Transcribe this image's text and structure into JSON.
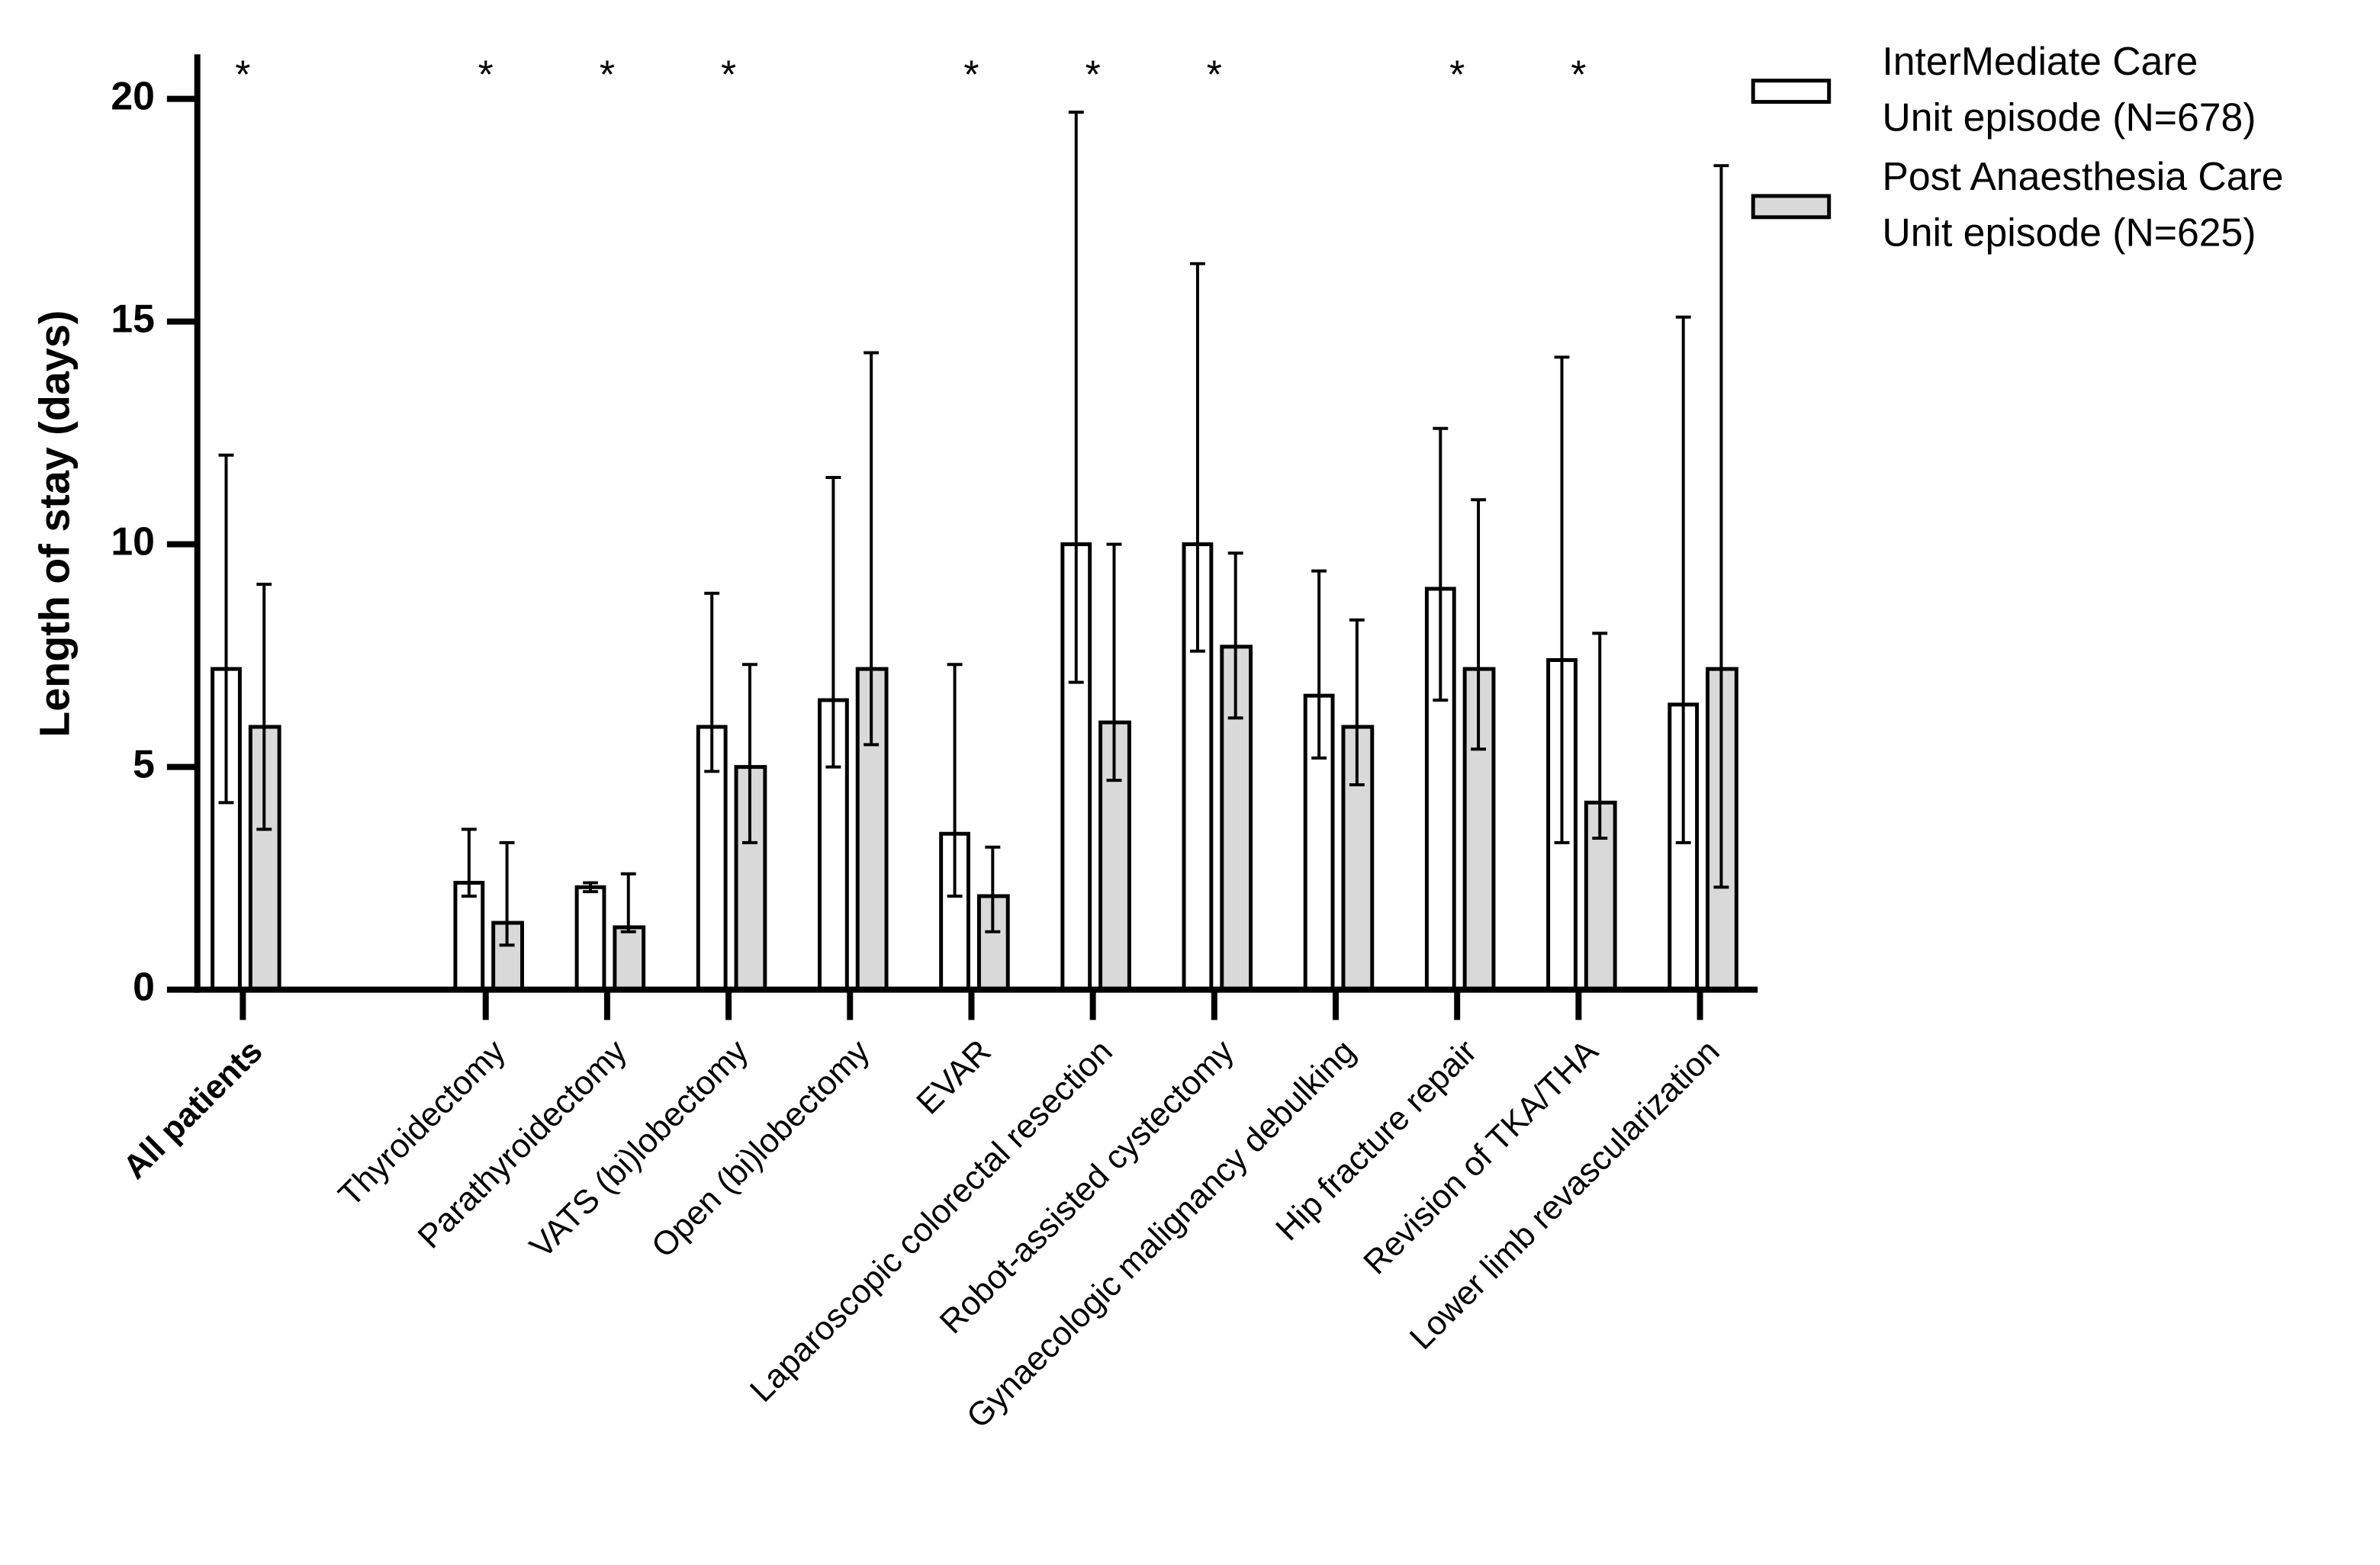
{
  "chart_data": {
    "type": "bar",
    "y_label": "Length of stay (days)",
    "categories": [
      "All patients",
      null,
      "Thyroidectomy",
      "Parathyroidectomy",
      "VATS (bi)lobectomy",
      "Open (bi)lobectomy",
      "EVAR",
      "Laparoscopic colorectal resection",
      "Robot-assisted cystectomy",
      "Gynaecologic malignancy debulking",
      "Hip fracture repair",
      "Revision of TKA/THA",
      "Lower limb revascularization"
    ],
    "significance": [
      "*",
      null,
      "*",
      "*",
      "*",
      null,
      "*",
      "*",
      "*",
      null,
      "*",
      "*",
      null
    ],
    "series": [
      {
        "name": "InterMediate Care Unit episode (N=678)",
        "color": "#ffffff",
        "values": [
          7.2,
          null,
          2.4,
          2.3,
          5.9,
          6.5,
          3.5,
          10,
          10,
          6.6,
          9.0,
          7.4,
          6.4
        ],
        "lower": [
          4.2,
          null,
          2.1,
          2.2,
          4.9,
          5.0,
          2.1,
          6.9,
          7.6,
          5.2,
          6.5,
          3.3,
          3.3
        ],
        "upper": [
          12,
          null,
          3.6,
          2.4,
          8.9,
          11.5,
          7.3,
          19.7,
          16.3,
          9.4,
          12.6,
          14.2,
          15.1
        ]
      },
      {
        "name": "Post Anaesthesia Care Unit episode (N=625)",
        "color": "#d9d9d9",
        "values": [
          5.9,
          null,
          1.5,
          1.4,
          5.0,
          7.2,
          2.1,
          6.0,
          7.7,
          5.9,
          7.2,
          4.2,
          7.2
        ],
        "lower": [
          3.6,
          null,
          1.0,
          1.3,
          3.3,
          5.5,
          1.3,
          4.7,
          6.1,
          4.6,
          5.4,
          3.4,
          2.3
        ],
        "upper": [
          9.1,
          null,
          3.3,
          2.6,
          7.3,
          14.3,
          3.2,
          10,
          9.8,
          8.3,
          11.0,
          8.0,
          18.5
        ]
      }
    ],
    "ylim": [
      0,
      21
    ],
    "yticks": [
      0,
      5,
      10,
      15,
      20
    ],
    "legend": "top-right"
  }
}
